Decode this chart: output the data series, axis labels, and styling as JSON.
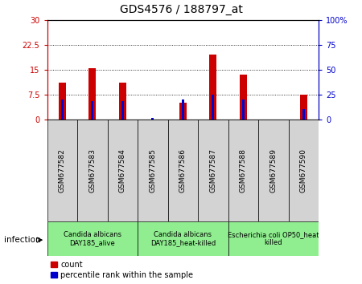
{
  "title": "GDS4576 / 188797_at",
  "samples": [
    "GSM677582",
    "GSM677583",
    "GSM677584",
    "GSM677585",
    "GSM677586",
    "GSM677587",
    "GSM677588",
    "GSM677589",
    "GSM677590"
  ],
  "count_values": [
    11.0,
    15.5,
    11.0,
    0.0,
    5.0,
    19.5,
    13.5,
    0.0,
    7.5
  ],
  "percentile_values": [
    20.0,
    18.0,
    18.0,
    1.5,
    20.0,
    25.0,
    20.0,
    0.0,
    10.0
  ],
  "left_ylim": [
    0,
    30
  ],
  "right_ylim": [
    0,
    100
  ],
  "left_yticks": [
    0,
    7.5,
    15,
    22.5,
    30
  ],
  "right_yticks": [
    0,
    25,
    50,
    75,
    100
  ],
  "left_yticklabels": [
    "0",
    "7.5",
    "15",
    "22.5",
    "30"
  ],
  "right_yticklabels": [
    "0",
    "25",
    "50",
    "75",
    "100%"
  ],
  "bar_color": "#cc0000",
  "percentile_color": "#0000cc",
  "grid_color": "black",
  "group_labels": [
    "Candida albicans\nDAY185_alive",
    "Candida albicans\nDAY185_heat-killed",
    "Escherichia coli OP50_heat\nkilled"
  ],
  "group_ranges": [
    [
      0,
      3
    ],
    [
      3,
      6
    ],
    [
      6,
      9
    ]
  ],
  "group_color": "#90ee90",
  "sample_box_color": "#d3d3d3",
  "plot_bg_color": "#ffffff",
  "bar_width": 0.25,
  "percentile_bar_width": 0.08,
  "title_fontsize": 10,
  "tick_fontsize": 7,
  "legend_fontsize": 7,
  "group_fontsize": 6,
  "sample_fontsize": 6.5
}
